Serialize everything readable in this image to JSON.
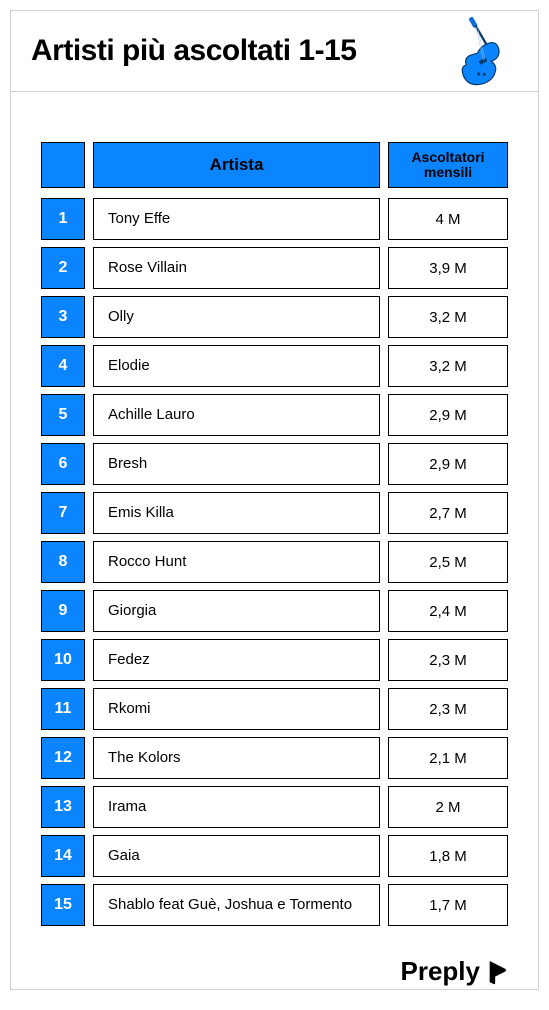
{
  "title": "Artisti più ascoltati 1-15",
  "columns": {
    "artist": "Artista",
    "listeners": "Ascoltatori mensili"
  },
  "colors": {
    "primary": "#0a84ff",
    "border": "#000000",
    "rank_text": "#ffffff",
    "cell_bg": "#ffffff",
    "card_border": "#d0d0d0"
  },
  "icon": "guitar-icon",
  "rows": [
    {
      "rank": "1",
      "artist": "Tony Effe",
      "listeners": "4 M"
    },
    {
      "rank": "2",
      "artist": "Rose Villain",
      "listeners": "3,9 M"
    },
    {
      "rank": "3",
      "artist": "Olly",
      "listeners": "3,2 M"
    },
    {
      "rank": "4",
      "artist": "Elodie",
      "listeners": "3,2 M"
    },
    {
      "rank": "5",
      "artist": "Achille Lauro",
      "listeners": "2,9 M"
    },
    {
      "rank": "6",
      "artist": "Bresh",
      "listeners": "2,9 M"
    },
    {
      "rank": "7",
      "artist": "Emis Killa",
      "listeners": "2,7 M"
    },
    {
      "rank": "8",
      "artist": "Rocco Hunt",
      "listeners": "2,5 M"
    },
    {
      "rank": "9",
      "artist": "Giorgia",
      "listeners": "2,4 M"
    },
    {
      "rank": "10",
      "artist": "Fedez",
      "listeners": "2,3 M"
    },
    {
      "rank": "11",
      "artist": "Rkomi",
      "listeners": "2,3 M"
    },
    {
      "rank": "12",
      "artist": "The Kolors",
      "listeners": "2,1 M"
    },
    {
      "rank": "13",
      "artist": "Irama",
      "listeners": "2 M"
    },
    {
      "rank": "14",
      "artist": "Gaia",
      "listeners": "1,8 M"
    },
    {
      "rank": "15",
      "artist": "Shablo feat Guè, Joshua e Tormento",
      "listeners": "1,7 M"
    }
  ],
  "brand": "Preply"
}
